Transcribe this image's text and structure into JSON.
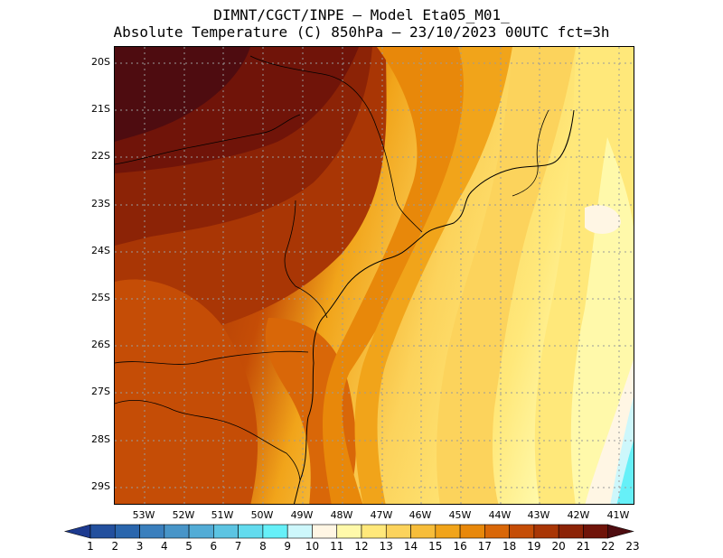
{
  "title": {
    "line1": "DIMNT/CGCT/INPE –  Model Eta05_M01_",
    "line2": "Absolute Temperature (C) 850hPa –  23/10/2023 00UTC fct=3h"
  },
  "map": {
    "region": "Southeast/South Brazil",
    "lat_labels": [
      "20S",
      "21S",
      "22S",
      "23S",
      "24S",
      "25S",
      "26S",
      "27S",
      "28S",
      "29S"
    ],
    "lon_labels": [
      "53W",
      "52W",
      "51W",
      "50W",
      "49W",
      "48W",
      "47W",
      "46W",
      "45W",
      "44W",
      "43W",
      "42W",
      "41W"
    ],
    "lon_range": [
      -53.75,
      -40.6
    ],
    "lat_range": [
      -19.7,
      -29.4
    ]
  },
  "colorbar": {
    "labels": [
      "1",
      "2",
      "3",
      "4",
      "5",
      "6",
      "7",
      "8",
      "9",
      "10",
      "11",
      "12",
      "13",
      "14",
      "15",
      "16",
      "17",
      "18",
      "19",
      "20",
      "21",
      "22",
      "23"
    ],
    "colors": [
      "#1d3a8f",
      "#23509e",
      "#2a66ad",
      "#3a7fbd",
      "#4895c8",
      "#52acd6",
      "#5cc4e2",
      "#62dbee",
      "#66f0f8",
      "#cdf7fb",
      "#fff6e4",
      "#fff9aa",
      "#ffe87a",
      "#fcd35c",
      "#f7bd3a",
      "#f1a41a",
      "#e8880a",
      "#d96708",
      "#c54d06",
      "#a93605",
      "#8c2306",
      "#701409",
      "#4e0c10"
    ]
  }
}
